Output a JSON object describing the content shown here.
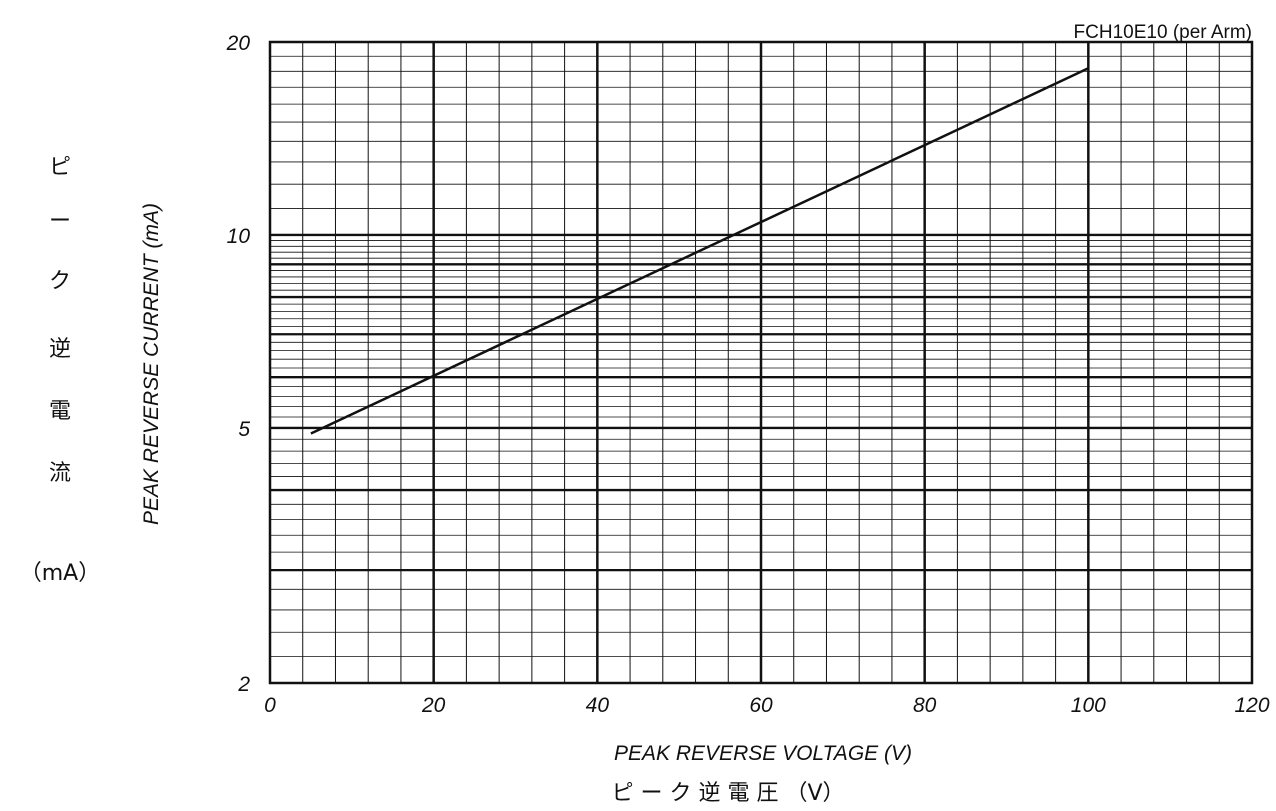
{
  "chart_data": {
    "type": "line",
    "title": "",
    "subtitle": "FCH10E10 (per Arm)",
    "xlabel": "PEAK REVERSE VOLTAGE (V)",
    "xlabel_jp": "ピ ー ク 逆 電 圧 （V）",
    "ylabel": "PEAK REVERSE CURRENT (mA)",
    "ylabel_jp": [
      "ピ",
      "ー",
      "ク",
      "逆",
      "電",
      "流",
      "（mA）"
    ],
    "xlim": [
      0,
      120
    ],
    "ylim": [
      2,
      20
    ],
    "yscale": "log",
    "grid": true,
    "x_ticks": [
      "0",
      "20",
      "40",
      "60",
      "80",
      "100",
      "120"
    ],
    "y_ticks": [
      "2",
      "5",
      "10",
      "20"
    ],
    "series": [
      {
        "x": [
          5,
          100
        ],
        "y": [
          4.9,
          18.2
        ]
      }
    ]
  }
}
